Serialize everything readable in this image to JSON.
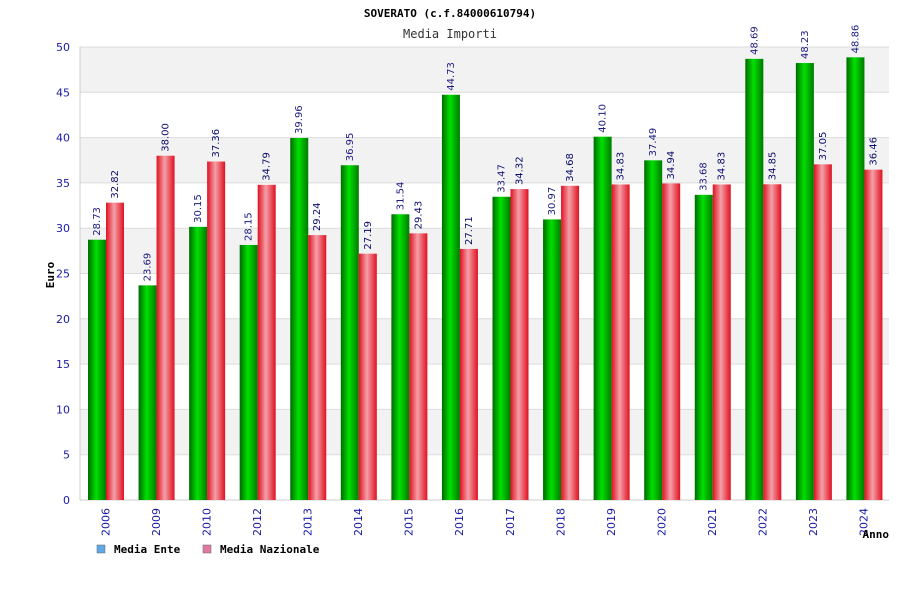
{
  "chart_data": {
    "type": "bar",
    "title": "SOVERATO (c.f.84000610794)",
    "subtitle": "Media Importi",
    "xlabel": "Anno",
    "ylabel": "Euro",
    "ylim": [
      0,
      50
    ],
    "yticks": [
      "0",
      "5",
      "10",
      "15",
      "20",
      "25",
      "30",
      "35",
      "40",
      "45",
      "50"
    ],
    "grid": true,
    "legend_position": "bottom-left",
    "categories": [
      "2006",
      "2009",
      "2010",
      "2012",
      "2013",
      "2014",
      "2015",
      "2016",
      "2017",
      "2018",
      "2019",
      "2020",
      "2021",
      "2022",
      "2023",
      "2024"
    ],
    "series": [
      {
        "name": "Media Ente",
        "color": "#00c000",
        "legend_color": "#5fa8e8",
        "values": [
          28.73,
          23.69,
          30.15,
          28.15,
          39.96,
          36.95,
          31.54,
          44.73,
          33.47,
          30.97,
          40.1,
          37.49,
          33.68,
          48.69,
          48.23,
          48.86
        ],
        "labels": [
          "28.73",
          "23.69",
          "30.15",
          "28.15",
          "39.96",
          "36.95",
          "31.54",
          "44.73",
          "33.47",
          "30.97",
          "40.10",
          "37.49",
          "33.68",
          "48.69",
          "48.23",
          "48.86"
        ]
      },
      {
        "name": "Media Nazionale",
        "color": "#e8202a",
        "legend_color": "#e07aa0",
        "values": [
          32.82,
          38.0,
          37.36,
          34.79,
          29.24,
          27.19,
          29.43,
          27.71,
          34.32,
          34.68,
          34.83,
          34.94,
          34.83,
          34.85,
          37.05,
          36.46
        ],
        "labels": [
          "32.82",
          "38.00",
          "37.36",
          "34.79",
          "29.24",
          "27.19",
          "29.43",
          "27.71",
          "34.32",
          "34.68",
          "34.83",
          "34.94",
          "34.83",
          "34.85",
          "37.05",
          "36.46"
        ]
      }
    ]
  }
}
